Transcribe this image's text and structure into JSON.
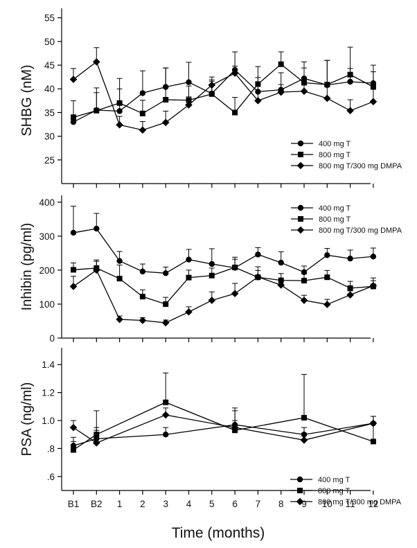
{
  "chart_data": {
    "type": "line",
    "xlabel": "Time (months)",
    "categories": [
      "B1",
      "B2",
      "1",
      "2",
      "3",
      "4",
      "5",
      "6",
      "7",
      "8",
      "9",
      "10",
      "11",
      "12"
    ],
    "panels": [
      {
        "ylabel": "SHBG (nM)",
        "ylim": [
          20,
          57
        ],
        "yticks": [
          25,
          30,
          35,
          40,
          45,
          50,
          55
        ],
        "ytick_labels": [
          "25",
          "30",
          "35",
          "40",
          "45",
          "50",
          "55"
        ],
        "legend_position": "lower-right",
        "series": [
          {
            "name": "400 mg T",
            "marker": "circle",
            "values": [
              33,
              35.5,
              35.3,
              39.1,
              40.4,
              41.4,
              39,
              44,
              39.4,
              39.8,
              42.2,
              40.8,
              41.5,
              41.2
            ],
            "errors": [
              1.5,
              3.7,
              4.7,
              4.7,
              4.0,
              4.2,
              2.6,
              3.8,
              3.0,
              3.6,
              3.5,
              5.2,
              2.8,
              3.8
            ]
          },
          {
            "name": "800 mg T",
            "marker": "square",
            "values": [
              34,
              35.4,
              37,
              34.8,
              37.7,
              37.6,
              38.9,
              35,
              41,
              45.2,
              41.3,
              40.9,
              43,
              40.4
            ],
            "errors": [
              3.5,
              4.8,
              5.2,
              2.8,
              6.7,
              3.0,
              3.0,
              3.2,
              3.7,
              2.6,
              3.1,
              5.1,
              5.8,
              3.2
            ]
          },
          {
            "name": "800 mg T/300 mg DMPA",
            "marker": "diamond",
            "values": [
              42,
              45.7,
              32.4,
              31.3,
              32.9,
              36.6,
              40.8,
              43.3,
              37.5,
              39.3,
              39.5,
              38,
              35.4,
              37.3
            ],
            "errors": [
              2.3,
              3.0,
              1.8,
              1.8,
              2.4,
              1.7,
              1.7,
              1.5,
              1.8,
              1.6,
              2.0,
              2.9,
              2.3,
              2.9
            ]
          }
        ]
      },
      {
        "ylabel": "Inhibin (pg/ml)",
        "ylim": [
          0,
          420
        ],
        "yticks": [
          0,
          100,
          200,
          300,
          400
        ],
        "ytick_labels": [
          "0",
          "100",
          "200",
          "300",
          "400"
        ],
        "legend_position": "top-right",
        "series": [
          {
            "name": "400 mg T",
            "marker": "circle",
            "values": [
              310,
              322,
              227,
              196,
              191,
              231,
              218,
              207,
              246,
              222,
              194,
              244,
              234,
              240
            ],
            "errors": [
              78,
              45,
              28,
              22,
              18,
              30,
              45,
              25,
              20,
              32,
              18,
              20,
              25,
              25
            ]
          },
          {
            "name": "800 mg T",
            "marker": "square",
            "values": [
              201,
              206,
              175,
              122,
              100,
              178,
              184,
              208,
              179,
              170,
              169,
              179,
              147,
              152
            ],
            "errors": [
              20,
              20,
              40,
              20,
              20,
              22,
              22,
              30,
              20,
              20,
              20,
              20,
              20,
              25
            ]
          },
          {
            "name": "800 mg T/300 mg DMPA",
            "marker": "diamond",
            "values": [
              152,
              200,
              55,
              52,
              45,
              77,
              111,
              131,
              180,
              156,
              111,
              99,
              127,
              154
            ],
            "errors": [
              30,
              30,
              10,
              8,
              8,
              15,
              25,
              30,
              30,
              15,
              15,
              15,
              12,
              15
            ]
          }
        ]
      },
      {
        "ylabel": "PSA (ng/ml)",
        "ylim": [
          0.5,
          1.52
        ],
        "yticks": [
          0.6,
          0.8,
          1.0,
          1.2,
          1.4
        ],
        "ytick_labels": [
          ".6",
          ".8",
          "1.0",
          "1.2",
          "1.4"
        ],
        "legend_position": "bottom-right",
        "series": [
          {
            "name": "400 mg T",
            "marker": "circle",
            "x_index": [
              0,
              1,
              4,
              7,
              10,
              13
            ],
            "values": [
              0.82,
              0.87,
              0.9,
              0.97,
              0.9,
              0.98
            ],
            "errors": [
              0.06,
              0.06,
              0.05,
              0.1,
              0.05,
              0.05
            ]
          },
          {
            "name": "800 mg T",
            "marker": "square",
            "x_index": [
              0,
              1,
              4,
              7,
              10,
              13
            ],
            "values": [
              0.79,
              0.9,
              1.13,
              0.93,
              1.02,
              0.85
            ],
            "errors": [
              0.06,
              0.17,
              0.21,
              0.16,
              0.31,
              0.13
            ]
          },
          {
            "name": "800 mg T/300 mg DMPA",
            "marker": "diamond",
            "x_index": [
              0,
              1,
              4,
              7,
              10,
              13
            ],
            "values": [
              0.95,
              0.84,
              1.04,
              0.95,
              0.86,
              0.98
            ],
            "errors": [
              0.05,
              0.11,
              0.05,
              0.05,
              0.05,
              0.05
            ]
          }
        ]
      }
    ]
  }
}
